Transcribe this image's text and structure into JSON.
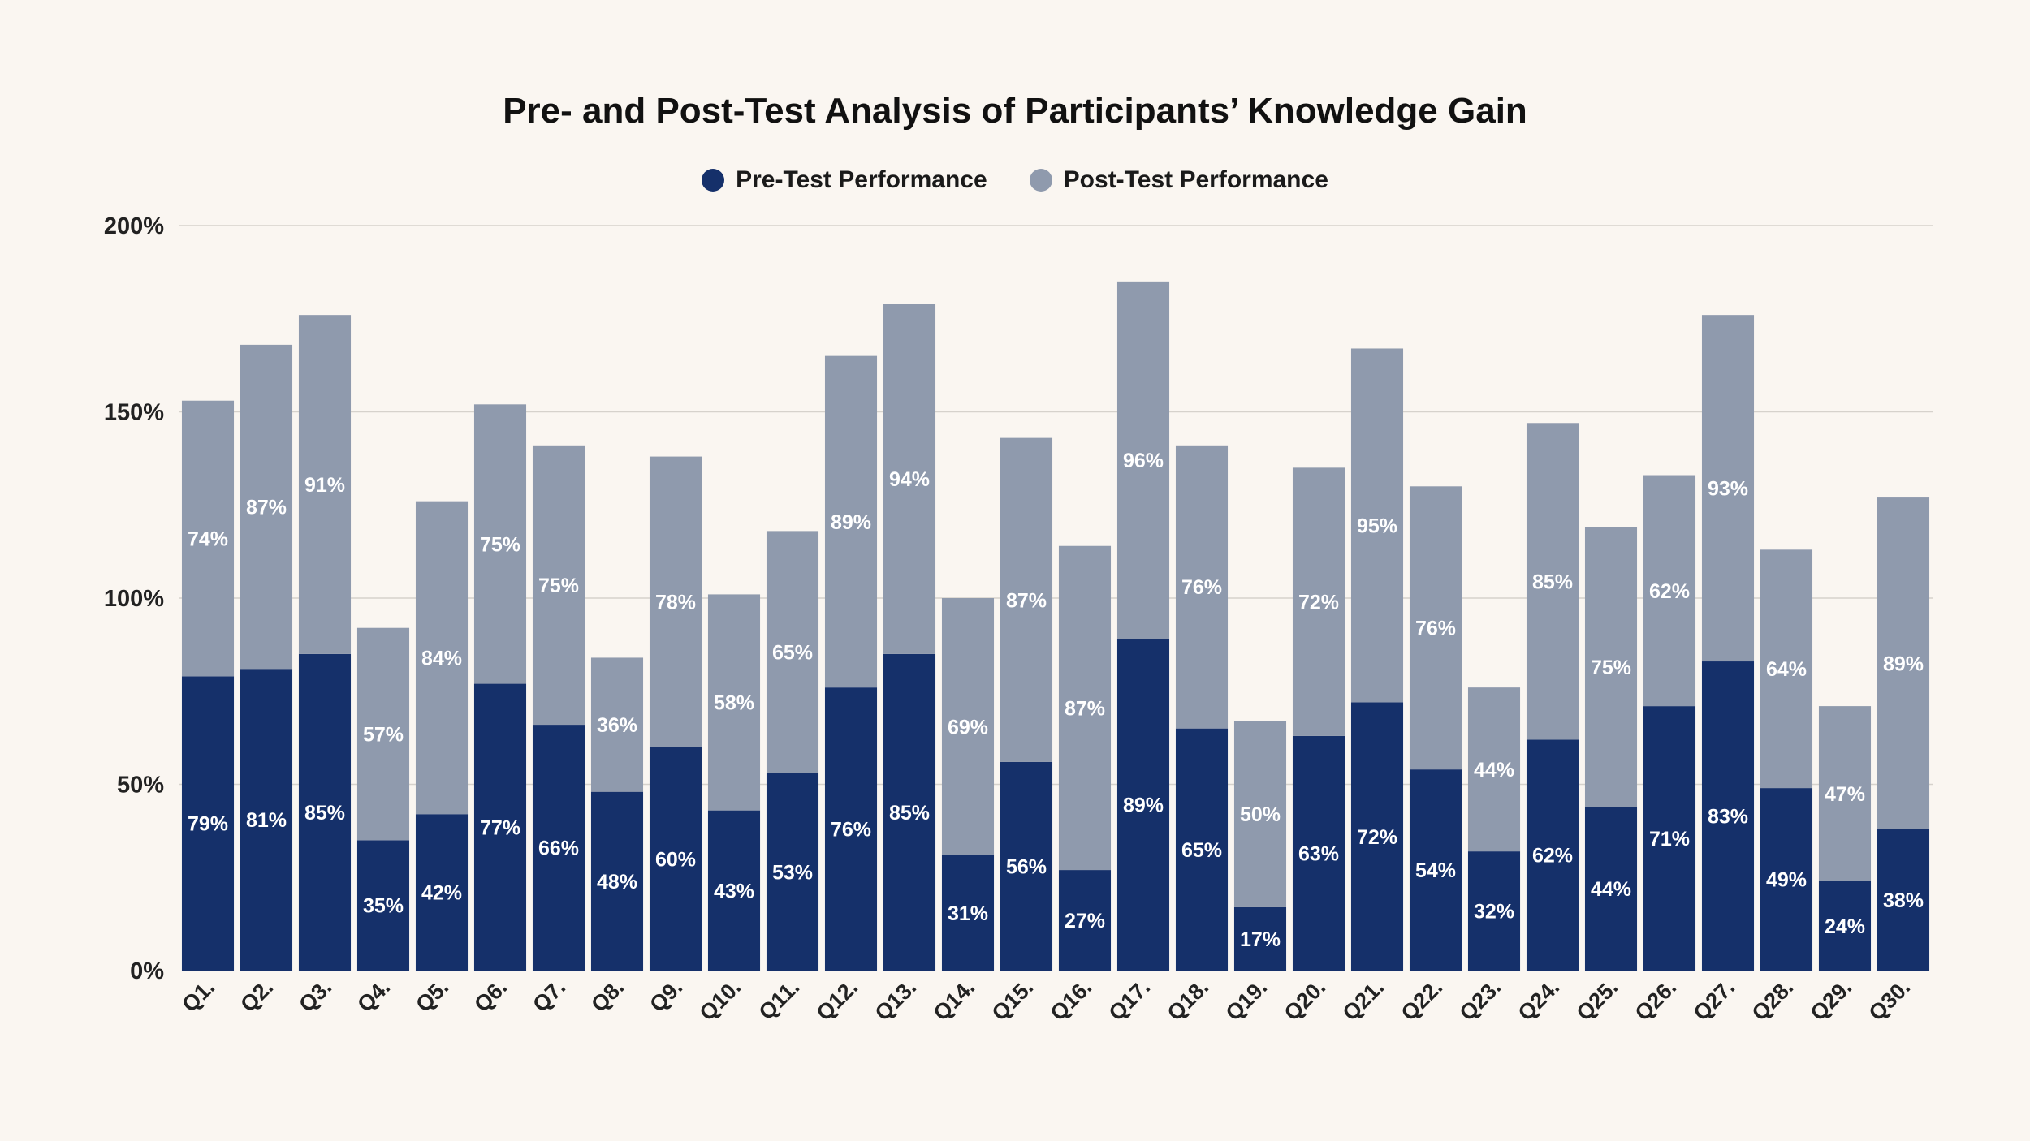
{
  "chart_data": {
    "type": "bar",
    "stacked": true,
    "title": "Pre- and Post-Test Analysis of Participants’ Knowledge Gain",
    "xlabel": "",
    "ylabel": "",
    "ylim": [
      0,
      200
    ],
    "yticks": [
      "0%",
      "50%",
      "100%",
      "150%",
      "200%"
    ],
    "grid": true,
    "legend_position": "top-center",
    "categories": [
      "Q1.",
      "Q2.",
      "Q3.",
      "Q4.",
      "Q5.",
      "Q6.",
      "Q7.",
      "Q8.",
      "Q9.",
      "Q10.",
      "Q11.",
      "Q12.",
      "Q13.",
      "Q14.",
      "Q15.",
      "Q16.",
      "Q17.",
      "Q18.",
      "Q19.",
      "Q20.",
      "Q21.",
      "Q22.",
      "Q23.",
      "Q24.",
      "Q25.",
      "Q26.",
      "Q27.",
      "Q28.",
      "Q29.",
      "Q30."
    ],
    "series": [
      {
        "name": "Pre-Test Performance",
        "color": "#15306a",
        "values": [
          79,
          81,
          85,
          35,
          42,
          77,
          66,
          48,
          60,
          43,
          53,
          76,
          85,
          31,
          56,
          27,
          89,
          65,
          17,
          63,
          72,
          54,
          32,
          62,
          44,
          71,
          83,
          49,
          24,
          38
        ],
        "labels": [
          "79%",
          "81%",
          "85%",
          "35%",
          "42%",
          "77%",
          "66%",
          "48%",
          "60%",
          "43%",
          "53%",
          "76%",
          "85%",
          "31%",
          "56%",
          "27%",
          "89%",
          "65%",
          "17%",
          "63%",
          "72%",
          "54%",
          "32%",
          "62%",
          "44%",
          "71%",
          "83%",
          "49%",
          "24%",
          "38%"
        ]
      },
      {
        "name": "Post-Test Performance",
        "color": "#8f9aad",
        "values": [
          74,
          87,
          91,
          57,
          84,
          75,
          75,
          36,
          78,
          58,
          65,
          89,
          94,
          69,
          87,
          87,
          96,
          76,
          50,
          72,
          95,
          76,
          44,
          85,
          75,
          62,
          93,
          64,
          47,
          89
        ],
        "labels": [
          "74%",
          "87%",
          "91%",
          "57%",
          "84%",
          "75%",
          "75%",
          "36%",
          "78%",
          "58%",
          "65%",
          "89%",
          "94%",
          "69%",
          "87%",
          "87%",
          "96%",
          "76%",
          "50%",
          "72%",
          "95%",
          "76%",
          "44%",
          "85%",
          "75%",
          "62%",
          "93%",
          "64%",
          "47%",
          "89%"
        ]
      }
    ]
  }
}
